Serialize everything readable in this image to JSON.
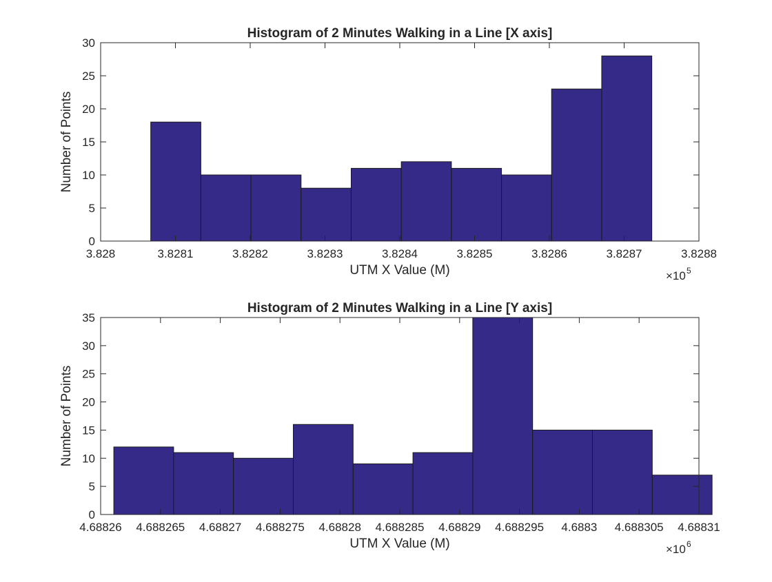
{
  "chart_data": [
    {
      "type": "bar",
      "title": "Histogram of 2 Minutes Walking in a Line [X axis]",
      "xlabel": "UTM X Value (M)",
      "ylabel": "Number of Points",
      "x_exponent_base": "×10",
      "x_exponent_power": "5",
      "xlim": [
        3.828,
        3.8288
      ],
      "ylim": [
        0,
        30
      ],
      "xticks": [
        3.828,
        3.8281,
        3.8282,
        3.8283,
        3.8284,
        3.8285,
        3.8286,
        3.8287,
        3.8288
      ],
      "xtick_labels": [
        "3.828",
        "3.8281",
        "3.8282",
        "3.8283",
        "3.8284",
        "3.8285",
        "3.8286",
        "3.8287",
        "3.8288"
      ],
      "yticks": [
        0,
        5,
        10,
        15,
        20,
        25,
        30
      ],
      "ytick_labels": [
        "0",
        "5",
        "10",
        "15",
        "20",
        "25",
        "30"
      ],
      "bin_edges": [
        3.828067,
        3.828134,
        3.828201,
        3.828268,
        3.828335,
        3.828402,
        3.828469,
        3.828536,
        3.828603,
        3.82867,
        3.828737
      ],
      "counts": [
        18,
        10,
        10,
        8,
        11,
        12,
        11,
        10,
        23,
        28
      ],
      "bar_color": "#352a87",
      "grid": false
    },
    {
      "type": "bar",
      "title": "Histogram of 2 Minutes Walking in a Line [Y axis]",
      "xlabel": "UTM X Value (M)",
      "ylabel": "Number of Points",
      "x_exponent_base": "×10",
      "x_exponent_power": "6",
      "xlim": [
        4.68826,
        4.68831
      ],
      "ylim": [
        0,
        35
      ],
      "xticks": [
        4.68826,
        4.688265,
        4.68827,
        4.688275,
        4.68828,
        4.688285,
        4.68829,
        4.688295,
        4.6883,
        4.688305,
        4.68831
      ],
      "xtick_labels": [
        "4.68826",
        "4.688265",
        "4.68827",
        "4.688275",
        "4.68828",
        "4.688285",
        "4.68829",
        "4.688295",
        "4.6883",
        "4.688305",
        "4.68831"
      ],
      "yticks": [
        0,
        5,
        10,
        15,
        20,
        25,
        30,
        35
      ],
      "ytick_labels": [
        "0",
        "5",
        "10",
        "15",
        "20",
        "25",
        "30",
        "35"
      ],
      "bin_edges": [
        4.6882611,
        4.6882661,
        4.6882711,
        4.6882761,
        4.6882811,
        4.6882861,
        4.6882911,
        4.6882961,
        4.6883011,
        4.6883061,
        4.6883111
      ],
      "counts": [
        12,
        11,
        10,
        16,
        9,
        11,
        36,
        15,
        15,
        7
      ],
      "bar_color": "#352a87",
      "grid": false
    }
  ]
}
